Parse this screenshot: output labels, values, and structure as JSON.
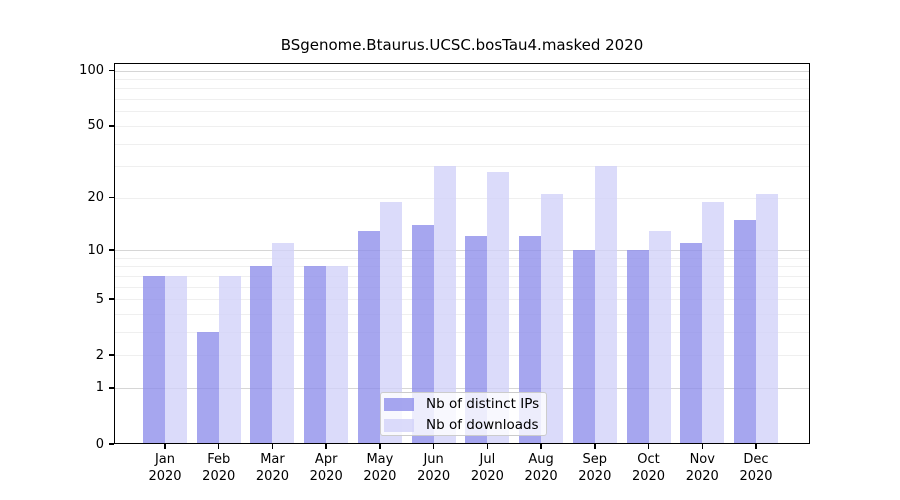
{
  "chart_data": {
    "type": "bar",
    "title": "BSgenome.Btaurus.UCSC.bosTau4.masked 2020",
    "categories": [
      "Jan",
      "Feb",
      "Mar",
      "Apr",
      "May",
      "Jun",
      "Jul",
      "Aug",
      "Sep",
      "Oct",
      "Nov",
      "Dec"
    ],
    "category_year_line": "2020",
    "series": [
      {
        "name": "Nb of distinct IPs",
        "color": "rgba(141,141,235,0.78)",
        "values": [
          7,
          3,
          8,
          8,
          13,
          14,
          12,
          12,
          10,
          10,
          11,
          15
        ]
      },
      {
        "name": "Nb of downloads",
        "color": "rgba(209,209,248,0.78)",
        "values": [
          7,
          7,
          11,
          8,
          19,
          30,
          28,
          21,
          30,
          13,
          19,
          21
        ]
      }
    ],
    "xlabel": "",
    "ylabel": "",
    "yscale": "log1p",
    "ylim": [
      0,
      110
    ],
    "y_ticks": [
      0,
      1,
      2,
      5,
      10,
      20,
      50,
      100
    ],
    "major_gridlines": [
      1,
      10,
      100
    ],
    "minor_gridlines": [
      2,
      3,
      4,
      5,
      6,
      7,
      8,
      9,
      20,
      30,
      40,
      50,
      60,
      70,
      80,
      90
    ],
    "grid": true,
    "legend_position": "inside-bottom-center"
  },
  "colors": {
    "distinct_ips_bar": "rgba(141,141,235,0.78)",
    "downloads_bar": "rgba(209,209,248,0.78)",
    "major_gridline": "#d6d6d6",
    "minor_gridline": "#efefef",
    "axis": "#000000",
    "legend_border": "#cccccc"
  }
}
